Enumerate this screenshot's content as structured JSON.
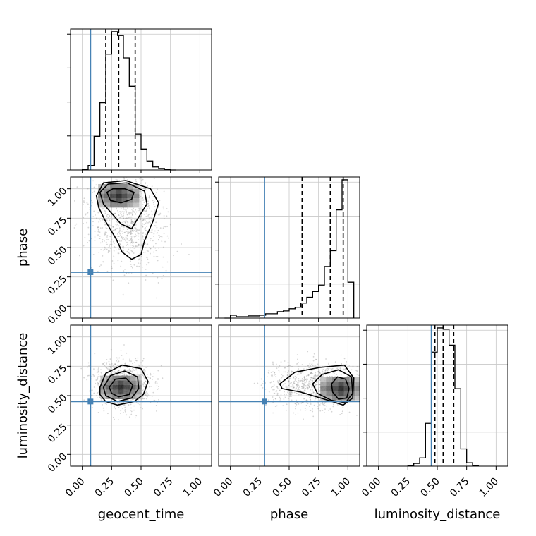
{
  "chart_data": {
    "type": "corner",
    "parameters": [
      "geocent_time",
      "phase",
      "luminosity_distance"
    ],
    "truths": [
      0.07,
      0.29,
      0.45
    ],
    "range": [
      -0.1,
      1.1
    ],
    "ticks": [
      0.0,
      0.25,
      0.5,
      0.75,
      1.0
    ],
    "tick_labels": [
      "0.00",
      "0.25",
      "0.50",
      "0.75",
      "1.00"
    ],
    "quantiles": {
      "geocent_time": [
        0.2,
        0.31,
        0.45
      ],
      "phase": [
        0.61,
        0.85,
        0.96
      ],
      "luminosity_distance": [
        0.48,
        0.55,
        0.64
      ]
    },
    "histograms": {
      "geocent_time": {
        "bin_edges": [
          0.0,
          0.05,
          0.1,
          0.15,
          0.2,
          0.25,
          0.3,
          0.35,
          0.4,
          0.45,
          0.5,
          0.55,
          0.6,
          0.65,
          0.7,
          0.75,
          0.8
        ],
        "counts": [
          1,
          6,
          45,
          90,
          155,
          185,
          180,
          150,
          112,
          48,
          28,
          12,
          4,
          2,
          0.5,
          0
        ]
      },
      "phase": {
        "bin_edges": [
          -0.05,
          0.0,
          0.05,
          0.1,
          0.15,
          0.2,
          0.25,
          0.3,
          0.35,
          0.4,
          0.45,
          0.5,
          0.55,
          0.6,
          0.65,
          0.7,
          0.75,
          0.8,
          0.85,
          0.9,
          0.95,
          1.0,
          1.05
        ],
        "counts": [
          0,
          4,
          2,
          2,
          3,
          3,
          4,
          6,
          6,
          9,
          10,
          13,
          15,
          21,
          29,
          37,
          46,
          72,
          94,
          151,
          193,
          50
        ]
      },
      "luminosity_distance": {
        "bin_edges": [
          0.25,
          0.3,
          0.35,
          0.4,
          0.45,
          0.5,
          0.55,
          0.6,
          0.65,
          0.7,
          0.75,
          0.8,
          0.85
        ],
        "counts": [
          1,
          4,
          12,
          62,
          165,
          200,
          198,
          175,
          112,
          25,
          5,
          1
        ]
      }
    },
    "pairs": [
      {
        "x": "geocent_time",
        "y": "phase",
        "peak": [
          0.31,
          0.94
        ],
        "contours": [
          [
            [
              0.21,
              0.97
            ],
            [
              0.26,
              1.0
            ],
            [
              0.36,
              1.0
            ],
            [
              0.44,
              0.97
            ],
            [
              0.42,
              0.91
            ],
            [
              0.33,
              0.88
            ],
            [
              0.24,
              0.9
            ]
          ],
          [
            [
              0.15,
              0.97
            ],
            [
              0.22,
              1.04
            ],
            [
              0.38,
              1.05
            ],
            [
              0.53,
              0.98
            ],
            [
              0.55,
              0.87
            ],
            [
              0.48,
              0.76
            ],
            [
              0.42,
              0.66
            ],
            [
              0.33,
              0.7
            ],
            [
              0.26,
              0.78
            ],
            [
              0.18,
              0.87
            ]
          ],
          [
            [
              0.12,
              0.94
            ],
            [
              0.18,
              1.05
            ],
            [
              0.37,
              1.07
            ],
            [
              0.58,
              1.0
            ],
            [
              0.65,
              0.88
            ],
            [
              0.6,
              0.72
            ],
            [
              0.53,
              0.56
            ],
            [
              0.5,
              0.44
            ],
            [
              0.42,
              0.4
            ],
            [
              0.34,
              0.46
            ],
            [
              0.29,
              0.57
            ],
            [
              0.2,
              0.72
            ],
            [
              0.14,
              0.84
            ]
          ]
        ]
      },
      {
        "x": "geocent_time",
        "y": "luminosity_distance",
        "peak": [
          0.33,
          0.57
        ],
        "contours": [
          [
            [
              0.23,
              0.57
            ],
            [
              0.28,
              0.64
            ],
            [
              0.37,
              0.65
            ],
            [
              0.43,
              0.59
            ],
            [
              0.4,
              0.51
            ],
            [
              0.31,
              0.49
            ],
            [
              0.25,
              0.52
            ]
          ],
          [
            [
              0.18,
              0.57
            ],
            [
              0.24,
              0.67
            ],
            [
              0.36,
              0.71
            ],
            [
              0.47,
              0.66
            ],
            [
              0.48,
              0.56
            ],
            [
              0.42,
              0.48
            ],
            [
              0.3,
              0.45
            ],
            [
              0.2,
              0.5
            ]
          ],
          [
            [
              0.15,
              0.57
            ],
            [
              0.2,
              0.69
            ],
            [
              0.34,
              0.76
            ],
            [
              0.5,
              0.73
            ],
            [
              0.56,
              0.62
            ],
            [
              0.52,
              0.51
            ],
            [
              0.44,
              0.45
            ],
            [
              0.3,
              0.42
            ],
            [
              0.2,
              0.45
            ],
            [
              0.15,
              0.51
            ]
          ]
        ]
      },
      {
        "x": "phase",
        "y": "luminosity_distance",
        "peak": [
          0.94,
          0.56
        ],
        "contours": [
          [
            [
              0.86,
              0.6
            ],
            [
              0.91,
              0.66
            ],
            [
              0.98,
              0.64
            ],
            [
              1.01,
              0.56
            ],
            [
              0.99,
              0.48
            ],
            [
              0.92,
              0.47
            ],
            [
              0.87,
              0.53
            ]
          ],
          [
            [
              0.7,
              0.6
            ],
            [
              0.78,
              0.68
            ],
            [
              0.92,
              0.72
            ],
            [
              1.03,
              0.66
            ],
            [
              1.04,
              0.52
            ],
            [
              0.98,
              0.44
            ],
            [
              0.86,
              0.46
            ],
            [
              0.74,
              0.52
            ]
          ],
          [
            [
              0.42,
              0.6
            ],
            [
              0.55,
              0.7
            ],
            [
              0.76,
              0.74
            ],
            [
              0.97,
              0.76
            ],
            [
              1.05,
              0.65
            ],
            [
              1.04,
              0.48
            ],
            [
              0.96,
              0.42
            ],
            [
              0.8,
              0.47
            ],
            [
              0.6,
              0.53
            ],
            [
              0.44,
              0.56
            ]
          ]
        ]
      }
    ]
  }
}
